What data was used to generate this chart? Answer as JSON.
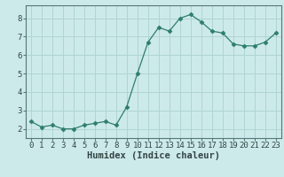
{
  "x": [
    0,
    1,
    2,
    3,
    4,
    5,
    6,
    7,
    8,
    9,
    10,
    11,
    12,
    13,
    14,
    15,
    16,
    17,
    18,
    19,
    20,
    21,
    22,
    23
  ],
  "y": [
    2.4,
    2.1,
    2.2,
    2.0,
    2.0,
    2.2,
    2.3,
    2.4,
    2.2,
    3.2,
    5.0,
    6.7,
    7.5,
    7.3,
    8.0,
    8.2,
    7.8,
    7.3,
    7.2,
    6.6,
    6.5,
    6.5,
    6.7,
    7.2
  ],
  "line_color": "#2e7d6e",
  "marker": "D",
  "marker_size": 2.5,
  "bg_color": "#cdeaea",
  "grid_color": "#b0d4d4",
  "xlabel": "Humidex (Indice chaleur)",
  "xlim": [
    -0.5,
    23.5
  ],
  "ylim": [
    1.5,
    8.7
  ],
  "yticks": [
    2,
    3,
    4,
    5,
    6,
    7,
    8
  ],
  "xticks": [
    0,
    1,
    2,
    3,
    4,
    5,
    6,
    7,
    8,
    9,
    10,
    11,
    12,
    13,
    14,
    15,
    16,
    17,
    18,
    19,
    20,
    21,
    22,
    23
  ],
  "tick_fontsize": 6.5,
  "xlabel_fontsize": 7.5
}
